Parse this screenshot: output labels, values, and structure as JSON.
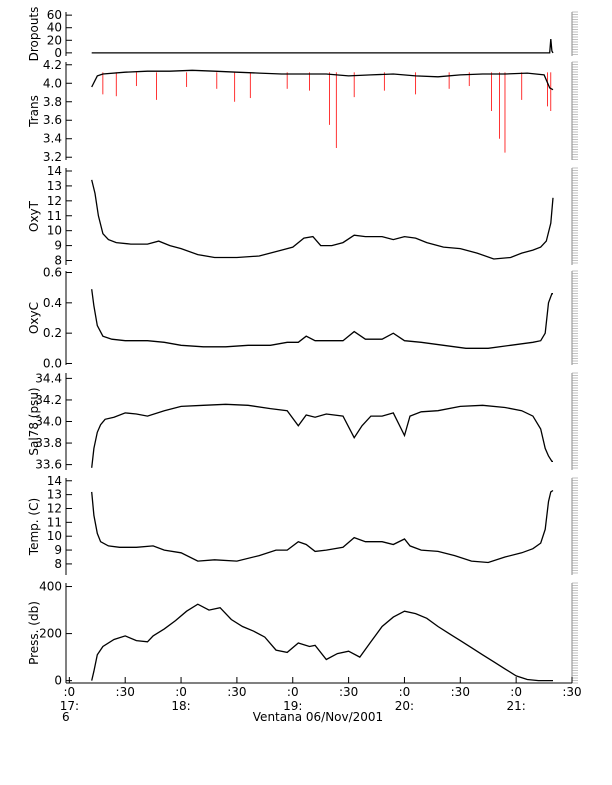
{
  "chart_data": {
    "type": "line",
    "xlabel": "Ventana 06/Nov/2001",
    "x_ticks": [
      {
        "top": ":0",
        "bottom": "17:",
        "h": 17.0
      },
      {
        "top": ":30",
        "bottom": "",
        "h": 17.5
      },
      {
        "top": ":0",
        "bottom": "18:",
        "h": 18.0
      },
      {
        "top": ":30",
        "bottom": "",
        "h": 18.5
      },
      {
        "top": ":0",
        "bottom": "19:",
        "h": 19.0
      },
      {
        "top": ":30",
        "bottom": "",
        "h": 19.5
      },
      {
        "top": ":0",
        "bottom": "20:",
        "h": 20.0
      },
      {
        "top": ":30",
        "bottom": "",
        "h": 20.5
      },
      {
        "top": ":0",
        "bottom": "21:",
        "h": 21.0
      },
      {
        "top": ":30",
        "bottom": "",
        "h": 21.5
      }
    ],
    "x_extra_label": "6",
    "xlim": [
      16.97,
      21.5
    ],
    "colors": {
      "main": "#000000",
      "raw": "#ff0000"
    },
    "panels": [
      {
        "ylabel": "Dropouts",
        "ylim": [
          -5,
          65
        ],
        "yticks": [
          0,
          20,
          40,
          60
        ],
        "ytick_labels": [
          "0",
          "20",
          "40",
          "60"
        ],
        "series": [
          {
            "x": [
              17.2,
              17.7,
              18.2,
              18.7,
              19.2,
              19.7,
              20.2,
              20.7,
              21.2,
              21.3,
              21.31,
              21.32,
              21.33
            ],
            "y": [
              0,
              0,
              0,
              0,
              0,
              0,
              0,
              0,
              0,
              0,
              22,
              3,
              0
            ]
          }
        ]
      },
      {
        "ylabel": "Trans",
        "ylim": [
          3.17,
          4.23
        ],
        "yticks": [
          3.2,
          3.4,
          3.6,
          3.8,
          4.0,
          4.2
        ],
        "ytick_labels": [
          "3.2",
          "3.4",
          "3.6",
          "3.8",
          "4.0",
          "4.2"
        ],
        "series": [
          {
            "x": [
              17.2,
              17.25,
              17.3,
              17.5,
              17.7,
              17.9,
              18.1,
              18.3,
              18.5,
              18.7,
              18.9,
              19.1,
              19.3,
              19.5,
              19.7,
              19.9,
              20.1,
              20.3,
              20.5,
              20.7,
              20.9,
              21.1,
              21.25,
              21.3,
              21.33
            ],
            "y": [
              3.96,
              4.08,
              4.1,
              4.12,
              4.13,
              4.13,
              4.14,
              4.13,
              4.12,
              4.11,
              4.1,
              4.1,
              4.1,
              4.08,
              4.09,
              4.1,
              4.08,
              4.07,
              4.09,
              4.1,
              4.1,
              4.11,
              4.09,
              3.95,
              3.93
            ]
          },
          {
            "x": [
              17.3,
              17.42,
              17.6,
              17.78,
              18.05,
              18.32,
              18.48,
              18.62,
              18.95,
              19.15,
              19.33,
              19.39,
              19.55,
              19.82,
              20.1,
              20.4,
              20.58,
              20.78,
              20.85,
              20.9,
              21.05,
              21.28,
              21.31
            ],
            "y": [
              3.88,
              3.86,
              3.97,
              3.82,
              3.96,
              3.94,
              3.8,
              3.84,
              3.94,
              3.92,
              3.55,
              3.3,
              3.85,
              3.92,
              3.88,
              3.94,
              3.97,
              3.7,
              3.4,
              3.25,
              3.82,
              3.75,
              3.7
            ]
          }
        ]
      },
      {
        "ylabel": "OxyT",
        "ylim": [
          7.7,
          14.2
        ],
        "yticks": [
          8,
          9,
          10,
          11,
          12,
          13,
          14
        ],
        "ytick_labels": [
          "8",
          "9",
          "10",
          "11",
          "12",
          "13",
          "14"
        ],
        "series": [
          {
            "x": [
              17.2,
              17.23,
              17.26,
              17.3,
              17.35,
              17.42,
              17.55,
              17.7,
              17.8,
              17.9,
              18.0,
              18.15,
              18.3,
              18.5,
              18.7,
              18.9,
              19.0,
              19.1,
              19.18,
              19.25,
              19.35,
              19.45,
              19.55,
              19.65,
              19.8,
              19.9,
              20.0,
              20.1,
              20.2,
              20.35,
              20.5,
              20.65,
              20.8,
              20.95,
              21.05,
              21.15,
              21.22,
              21.27,
              21.31,
              21.33
            ],
            "y": [
              13.4,
              12.5,
              11.0,
              9.8,
              9.4,
              9.2,
              9.1,
              9.1,
              9.3,
              9.0,
              8.8,
              8.4,
              8.2,
              8.2,
              8.3,
              8.7,
              8.9,
              9.5,
              9.6,
              9.0,
              9.0,
              9.2,
              9.7,
              9.6,
              9.6,
              9.4,
              9.6,
              9.5,
              9.2,
              8.9,
              8.8,
              8.5,
              8.1,
              8.2,
              8.5,
              8.7,
              8.9,
              9.3,
              10.5,
              12.2
            ]
          }
        ]
      },
      {
        "ylabel": "OxyC",
        "ylim": [
          -0.01,
          0.61
        ],
        "yticks": [
          0.0,
          0.2,
          0.4,
          0.6
        ],
        "ytick_labels": [
          "0.0",
          "0.2",
          "0.4",
          "0.6"
        ],
        "series": [
          {
            "x": [
              17.2,
              17.22,
              17.25,
              17.3,
              17.38,
              17.5,
              17.7,
              17.85,
              18.0,
              18.2,
              18.4,
              18.6,
              18.8,
              18.95,
              19.05,
              19.12,
              19.2,
              19.3,
              19.45,
              19.55,
              19.65,
              19.8,
              19.9,
              20.0,
              20.15,
              20.35,
              20.55,
              20.75,
              20.95,
              21.05,
              21.15,
              21.22,
              21.26,
              21.29,
              21.32,
              21.33
            ],
            "y": [
              0.49,
              0.38,
              0.25,
              0.18,
              0.16,
              0.15,
              0.15,
              0.14,
              0.12,
              0.11,
              0.11,
              0.12,
              0.12,
              0.14,
              0.14,
              0.18,
              0.15,
              0.15,
              0.15,
              0.21,
              0.16,
              0.16,
              0.2,
              0.15,
              0.14,
              0.12,
              0.1,
              0.1,
              0.12,
              0.13,
              0.14,
              0.15,
              0.2,
              0.4,
              0.46,
              0.46
            ]
          }
        ]
      },
      {
        "ylabel": "Sal78 (psu)",
        "ylim": [
          33.55,
          34.45
        ],
        "yticks": [
          33.6,
          33.8,
          34.0,
          34.2,
          34.4
        ],
        "ytick_labels": [
          "33.6",
          "33.8",
          "34.0",
          "34.2",
          "34.4"
        ],
        "series": [
          {
            "x": [
              17.2,
              17.22,
              17.25,
              17.28,
              17.32,
              17.4,
              17.5,
              17.6,
              17.7,
              17.85,
              18.0,
              18.2,
              18.4,
              18.6,
              18.8,
              18.95,
              19.05,
              19.12,
              19.2,
              19.3,
              19.45,
              19.55,
              19.62,
              19.7,
              19.8,
              19.9,
              20.0,
              20.05,
              20.15,
              20.3,
              20.5,
              20.7,
              20.9,
              21.05,
              21.15,
              21.22,
              21.26,
              21.29,
              21.32,
              21.33
            ],
            "y": [
              33.57,
              33.75,
              33.9,
              33.97,
              34.02,
              34.04,
              34.08,
              34.07,
              34.05,
              34.1,
              34.14,
              34.15,
              34.16,
              34.15,
              34.12,
              34.1,
              33.96,
              34.06,
              34.04,
              34.07,
              34.05,
              33.85,
              33.96,
              34.05,
              34.05,
              34.08,
              33.87,
              34.05,
              34.09,
              34.1,
              34.14,
              34.15,
              34.13,
              34.1,
              34.05,
              33.93,
              33.75,
              33.68,
              33.63,
              33.63
            ]
          }
        ]
      },
      {
        "ylabel": "Temp. (C)",
        "ylim": [
          7.2,
          14.2
        ],
        "yticks": [
          8,
          9,
          10,
          11,
          12,
          13,
          14
        ],
        "ytick_labels": [
          "8",
          "9",
          "10",
          "11",
          "12",
          "13",
          "14"
        ],
        "series": [
          {
            "x": [
              17.2,
              17.22,
              17.25,
              17.28,
              17.35,
              17.45,
              17.6,
              17.75,
              17.85,
              18.0,
              18.15,
              18.3,
              18.5,
              18.7,
              18.85,
              18.95,
              19.05,
              19.12,
              19.2,
              19.3,
              19.45,
              19.55,
              19.65,
              19.8,
              19.9,
              20.0,
              20.05,
              20.15,
              20.3,
              20.45,
              20.6,
              20.75,
              20.9,
              21.05,
              21.15,
              21.22,
              21.26,
              21.29,
              21.31,
              21.33
            ],
            "y": [
              13.2,
              11.5,
              10.2,
              9.6,
              9.3,
              9.2,
              9.2,
              9.3,
              9.0,
              8.8,
              8.2,
              8.3,
              8.2,
              8.6,
              9.0,
              9.0,
              9.6,
              9.4,
              8.9,
              9.0,
              9.2,
              9.9,
              9.6,
              9.6,
              9.4,
              9.8,
              9.3,
              9.0,
              8.9,
              8.6,
              8.2,
              8.1,
              8.5,
              8.8,
              9.1,
              9.5,
              10.5,
              12.5,
              13.2,
              13.3
            ]
          }
        ]
      },
      {
        "ylabel": "Press. (db)",
        "ylim": [
          -10,
          415
        ],
        "yticks": [
          0,
          200,
          400
        ],
        "ytick_labels": [
          "0",
          "200",
          "400"
        ],
        "series": [
          {
            "x": [
              17.2,
              17.22,
              17.25,
              17.3,
              17.4,
              17.5,
              17.6,
              17.7,
              17.75,
              17.85,
              17.95,
              18.05,
              18.15,
              18.25,
              18.35,
              18.45,
              18.55,
              18.65,
              18.75,
              18.85,
              18.95,
              19.05,
              19.15,
              19.2,
              19.3,
              19.4,
              19.5,
              19.6,
              19.7,
              19.8,
              19.9,
              20.0,
              20.1,
              20.2,
              20.3,
              20.4,
              20.5,
              20.6,
              20.7,
              20.8,
              20.9,
              21.0,
              21.1,
              21.2,
              21.26,
              21.3,
              21.33
            ],
            "y": [
              0,
              40,
              110,
              145,
              175,
              190,
              170,
              165,
              190,
              220,
              255,
              295,
              325,
              300,
              310,
              260,
              230,
              210,
              185,
              130,
              120,
              160,
              145,
              150,
              90,
              115,
              125,
              100,
              165,
              230,
              270,
              295,
              285,
              265,
              230,
              200,
              170,
              140,
              110,
              80,
              50,
              20,
              5,
              0,
              0,
              0,
              0
            ]
          }
        ]
      }
    ]
  }
}
